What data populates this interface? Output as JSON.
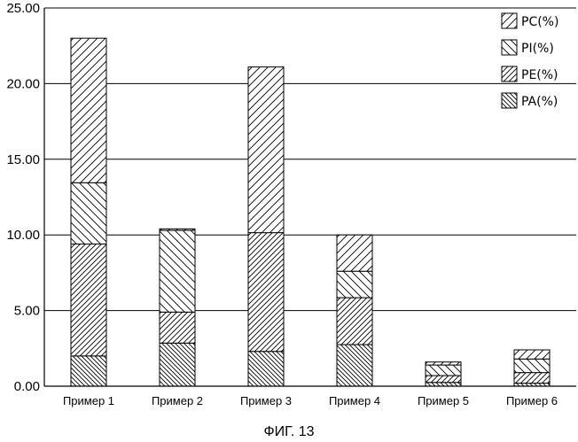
{
  "chart_data": {
    "type": "bar",
    "stacked": true,
    "categories": [
      "Пример 1",
      "Пример 2",
      "Пример 3",
      "Пример 4",
      "Пример 5",
      "Пример 6"
    ],
    "series": [
      {
        "name": "PA(%)",
        "values": [
          2.0,
          2.85,
          2.3,
          2.75,
          0.25,
          0.2
        ],
        "pattern": "dense-diagonal"
      },
      {
        "name": "PE(%)",
        "values": [
          7.4,
          2.05,
          7.85,
          3.1,
          0.45,
          0.7
        ],
        "pattern": "diagonal-double"
      },
      {
        "name": "PI(%)",
        "values": [
          4.05,
          5.4,
          0.0,
          1.75,
          0.7,
          0.9
        ],
        "pattern": "back-diagonal"
      },
      {
        "name": "PC(%)",
        "values": [
          9.55,
          0.1,
          10.95,
          2.4,
          0.2,
          0.6
        ],
        "pattern": "diagonal"
      }
    ],
    "ylim": [
      0,
      25
    ],
    "yticks": [
      "0.00",
      "5.00",
      "10.00",
      "15.00",
      "20.00",
      "25.00"
    ],
    "title": "",
    "xlabel": "",
    "ylabel": "",
    "grid": "horizontal",
    "legend_position": "top-right",
    "legend_order": [
      "PC(%)",
      "PI(%)",
      "PE(%)",
      "PA(%)"
    ]
  },
  "caption": "ФИГ. 13"
}
